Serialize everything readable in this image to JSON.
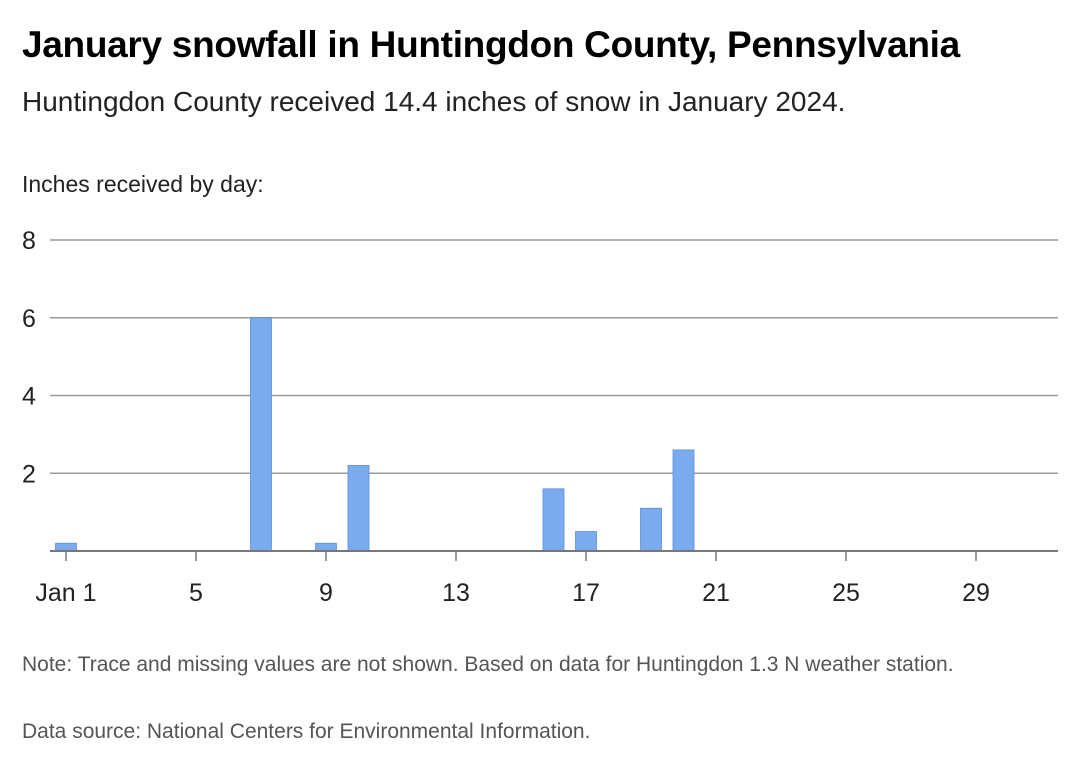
{
  "header": {
    "title": "January snowfall in Huntingdon County, Pennsylvania",
    "subtitle": "Huntingdon County received 14.4 inches of snow in January 2024.",
    "axis_title": "Inches received by day:"
  },
  "footer": {
    "note": "Note: Trace and missing values are not shown. Based on data for Huntingdon 1.3 N weather station.",
    "source": "Data source: National Centers for Environmental Information."
  },
  "chart_data": {
    "type": "bar",
    "title": "January snowfall in Huntingdon County, Pennsylvania",
    "subtitle": "Huntingdon County received 14.4 inches of snow in January 2024.",
    "ylabel": "Inches received by day:",
    "xlabel": "",
    "ylim": [
      0,
      8
    ],
    "yticks": [
      2,
      4,
      6,
      8
    ],
    "xlim": [
      1,
      31
    ],
    "xticks": [
      {
        "day": 1,
        "label": "Jan 1"
      },
      {
        "day": 5,
        "label": "5"
      },
      {
        "day": 9,
        "label": "9"
      },
      {
        "day": 13,
        "label": "13"
      },
      {
        "day": 17,
        "label": "17"
      },
      {
        "day": 21,
        "label": "21"
      },
      {
        "day": 25,
        "label": "25"
      },
      {
        "day": 29,
        "label": "29"
      }
    ],
    "grid": true,
    "bar_color": "#7aabee",
    "days": [
      1,
      7,
      9,
      10,
      16,
      17,
      19,
      20
    ],
    "values": [
      0.2,
      6.0,
      0.2,
      2.2,
      1.6,
      0.5,
      1.1,
      2.6
    ]
  }
}
